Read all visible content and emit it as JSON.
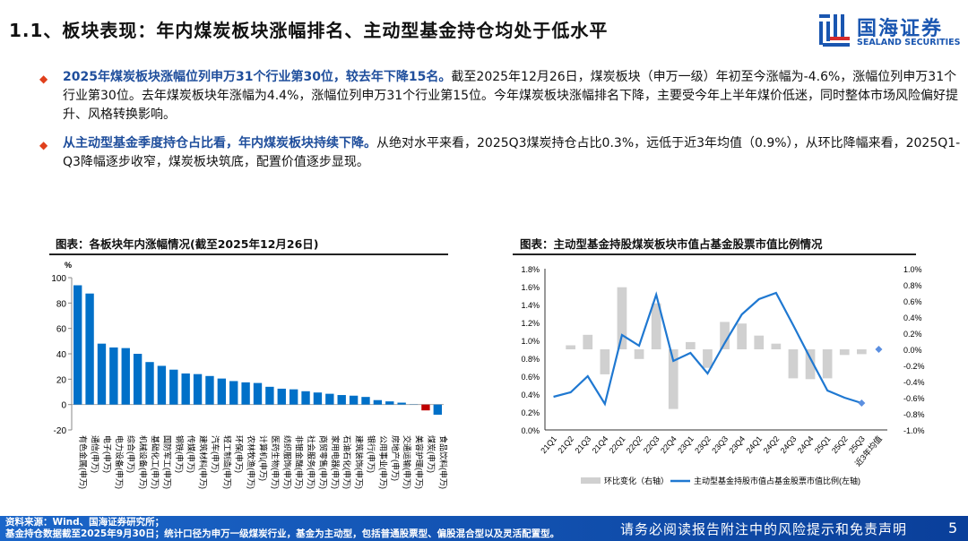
{
  "header": {
    "title": "1.1、板块表现：年内煤炭板块涨幅排名、主动型基金持仓均处于低水平",
    "logo_cn": "国海证券",
    "logo_en": "SEALAND SECURITIES"
  },
  "bullets": [
    {
      "highlight": "2025年煤炭板块涨幅位列申万31个行业第30位，较去年下降15名。",
      "text": "截至2025年12月26日，煤炭板块（申万一级）年初至今涨幅为-4.6%，涨幅位列申万31个行业第30位。去年煤炭板块年涨幅为4.4%，涨幅位列申万31个行业第15位。今年煤炭板块涨幅排名下降，主要受今年上半年煤价低迷，同时整体市场风险偏好提升、风格转换影响。"
    },
    {
      "highlight": "从主动型基金季度持仓占比看，年内煤炭板块持续下降。",
      "text": "从绝对水平来看，2025Q3煤炭持仓占比0.3%，远低于近3年均值（0.9%），从环比降幅来看，2025Q1-Q3降幅逐步收窄，煤炭板块筑底，配置价值逐步显现。"
    }
  ],
  "chart_data": [
    {
      "type": "bar",
      "title": "图表：各板块年内涨幅情况(截至2025年12月26日)",
      "ylabel": "%",
      "ylim": [
        -20,
        100
      ],
      "yticks": [
        -20,
        0,
        20,
        40,
        60,
        80,
        100
      ],
      "categories": [
        "有色金属(申万)",
        "通信(申万)",
        "电子(申万)",
        "电力设备(申万)",
        "综合(申万)",
        "机械设备(申万)",
        "基础化工(申万)",
        "国防军工(申万)",
        "钢铁(申万)",
        "传媒(申万)",
        "建筑材料(申万)",
        "汽车(申万)",
        "轻工制造(申万)",
        "环保(申万)",
        "农林牧渔(申万)",
        "计算机(申万)",
        "医药生物(申万)",
        "纺织服饰(申万)",
        "非银金融(申万)",
        "社会服务(申万)",
        "商贸零售(申万)",
        "家用电器(申万)",
        "石油石化(申万)",
        "建筑装饰(申万)",
        "银行(申万)",
        "公用事业(申万)",
        "房地产(申万)",
        "交通运输(申万)",
        "美容护理(申万)",
        "煤炭(申万)",
        "食品饮料(申万)"
      ],
      "values": [
        94,
        87.5,
        48,
        45,
        44.5,
        40,
        33.5,
        30.5,
        27.5,
        24.5,
        24,
        22.5,
        20.5,
        18.5,
        17.5,
        17,
        14,
        12.5,
        12,
        10.5,
        9.5,
        8.5,
        7.5,
        7,
        6,
        3.5,
        2.5,
        1.5,
        0.2,
        -4.6,
        -8
      ],
      "colors": {
        "default": "#0070c8",
        "highlight": "#c00000"
      },
      "highlight_category": "煤炭(申万)"
    },
    {
      "type": "bar+line",
      "title": "图表：主动型基金持股煤炭板块市值占基金股票市值比例情况",
      "categories": [
        "21Q1",
        "21Q2",
        "21Q3",
        "21Q4",
        "22Q1",
        "22Q2",
        "22Q3",
        "22Q4",
        "23Q1",
        "23Q2",
        "23Q3",
        "23Q4",
        "24Q1",
        "24Q2",
        "24Q3",
        "24Q4",
        "25Q1",
        "25Q2",
        "25Q3",
        "近3年均值"
      ],
      "yticks_left": [
        "0.0%",
        "0.2%",
        "0.4%",
        "0.6%",
        "0.8%",
        "1.0%",
        "1.2%",
        "1.4%",
        "1.6%",
        "1.8%"
      ],
      "yticks_right": [
        "-1.0%",
        "-0.8%",
        "-0.6%",
        "-0.4%",
        "-0.2%",
        "0.0%",
        "0.2%",
        "0.4%",
        "0.6%",
        "0.8%",
        "1.0%"
      ],
      "ylim_left": [
        0,
        1.8
      ],
      "ylim_right": [
        -1.0,
        1.0
      ],
      "series": [
        {
          "name": "环比变化（右轴）",
          "axis": "right",
          "type": "bar",
          "color": "#d0d0d0",
          "values": [
            null,
            0.05,
            0.18,
            -0.31,
            0.77,
            -0.12,
            0.57,
            -0.74,
            0.09,
            -0.23,
            0.34,
            0.32,
            0.17,
            0.07,
            -0.36,
            -0.37,
            -0.36,
            -0.07,
            -0.06,
            null
          ]
        },
        {
          "name": "主动型基金持股市值占基金股票市值比例(左轴)",
          "axis": "left",
          "type": "line",
          "color": "#1f78d1",
          "values": [
            0.37,
            0.42,
            0.6,
            0.29,
            1.06,
            0.94,
            1.51,
            0.77,
            0.86,
            0.63,
            0.97,
            1.29,
            1.46,
            1.53,
            1.17,
            0.8,
            0.44,
            0.36,
            0.3,
            null
          ]
        }
      ],
      "average_marker": {
        "category": "近3年均值",
        "value": 0.9
      }
    }
  ],
  "footer": {
    "source": "资料来源：Wind、国海证券研究所；",
    "note": "基金持仓数据截至2025年9月30日；统计口径为申万一级煤炭行业，基金为主动型，包括普通股票型、偏股混合型以及灵活配置型。",
    "disclaimer": "请务必阅读报告附注中的风险提示和免责声明",
    "page": "5"
  }
}
